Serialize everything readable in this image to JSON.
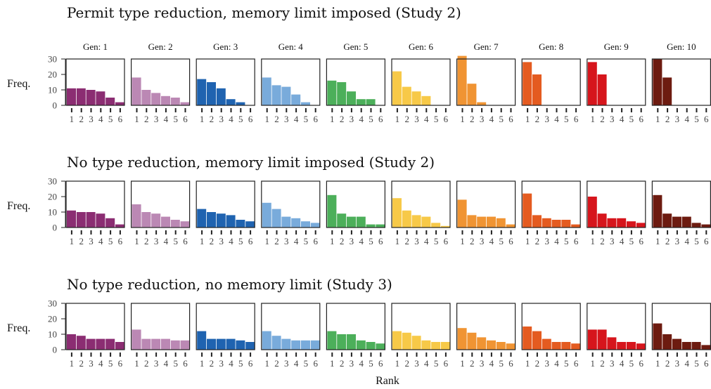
{
  "chart_data": {
    "type": "bar",
    "xlabel": "Rank",
    "ylabel": "Freq.",
    "ylim": [
      0,
      30
    ],
    "yticks": [
      0,
      10,
      20,
      30
    ],
    "categories": [
      "1",
      "2",
      "3",
      "4",
      "5",
      "6"
    ],
    "panel_labels": [
      "Gen: 1",
      "Gen: 2",
      "Gen: 3",
      "Gen: 4",
      "Gen: 5",
      "Gen: 6",
      "Gen: 7",
      "Gen: 8",
      "Gen: 9",
      "Gen: 10"
    ],
    "colors": [
      "#8b2d72",
      "#bb88b4",
      "#1f63b0",
      "#79abdb",
      "#4caf5a",
      "#f7c948",
      "#f09433",
      "#e45b20",
      "#d6151c",
      "#6d1b10"
    ],
    "rows": [
      {
        "title": "Permit type reduction, memory limit imposed (Study 2)",
        "panels": [
          {
            "values": [
              11,
              11,
              10,
              9,
              5,
              2
            ]
          },
          {
            "values": [
              18,
              10,
              8,
              6,
              5,
              2
            ]
          },
          {
            "values": [
              17,
              15,
              11,
              4,
              2,
              0
            ]
          },
          {
            "values": [
              18,
              13,
              12,
              7,
              2,
              0
            ]
          },
          {
            "values": [
              16,
              15,
              9,
              4,
              4,
              0
            ]
          },
          {
            "values": [
              22,
              12,
              9,
              6,
              0,
              0
            ]
          },
          {
            "values": [
              32,
              14,
              2,
              0,
              0,
              0
            ]
          },
          {
            "values": [
              28,
              20,
              0,
              0,
              0,
              0
            ]
          },
          {
            "values": [
              28,
              20,
              0,
              0,
              0,
              0
            ]
          },
          {
            "values": [
              30,
              18,
              0,
              0,
              0,
              0
            ]
          }
        ]
      },
      {
        "title": "No type reduction, memory limit imposed (Study 2)",
        "panels": [
          {
            "values": [
              11,
              10,
              10,
              9,
              6,
              2
            ]
          },
          {
            "values": [
              15,
              10,
              9,
              7,
              5,
              4
            ]
          },
          {
            "values": [
              12,
              10,
              9,
              8,
              5,
              4
            ]
          },
          {
            "values": [
              16,
              12,
              7,
              6,
              4,
              3
            ]
          },
          {
            "values": [
              21,
              9,
              7,
              7,
              2,
              2
            ]
          },
          {
            "values": [
              19,
              11,
              8,
              7,
              3,
              1
            ]
          },
          {
            "values": [
              18,
              8,
              7,
              7,
              6,
              2
            ]
          },
          {
            "values": [
              22,
              8,
              6,
              5,
              5,
              2
            ]
          },
          {
            "values": [
              20,
              9,
              6,
              6,
              4,
              3
            ]
          },
          {
            "values": [
              21,
              9,
              7,
              7,
              3,
              2
            ]
          }
        ]
      },
      {
        "title": "No type reduction, no memory limit (Study 3)",
        "panels": [
          {
            "values": [
              10,
              9,
              7,
              7,
              7,
              5
            ]
          },
          {
            "values": [
              13,
              7,
              7,
              7,
              6,
              6
            ]
          },
          {
            "values": [
              12,
              7,
              7,
              7,
              6,
              5
            ]
          },
          {
            "values": [
              12,
              9,
              7,
              6,
              6,
              6
            ]
          },
          {
            "values": [
              12,
              10,
              10,
              6,
              5,
              4
            ]
          },
          {
            "values": [
              12,
              11,
              9,
              6,
              5,
              5
            ]
          },
          {
            "values": [
              14,
              11,
              8,
              6,
              5,
              4
            ]
          },
          {
            "values": [
              15,
              12,
              7,
              5,
              5,
              4
            ]
          },
          {
            "values": [
              13,
              13,
              8,
              5,
              5,
              4
            ]
          },
          {
            "values": [
              17,
              10,
              7,
              5,
              5,
              3
            ]
          }
        ]
      }
    ]
  }
}
